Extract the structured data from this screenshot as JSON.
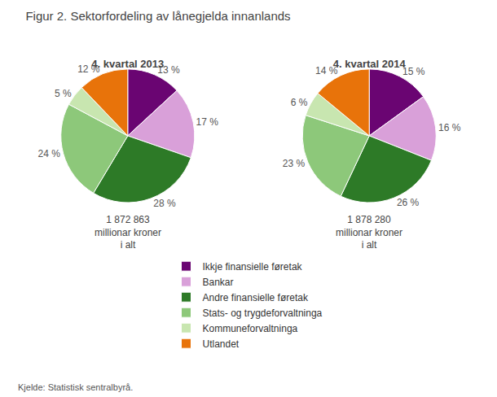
{
  "chart_data": {
    "type": "pie",
    "title": "Figur 2. Sektorfordeling av lånegjelda innanlands",
    "categories": [
      "Ikkje finansielle føretak",
      "Bankar",
      "Andre finansielle føretak",
      "Stats- og trygdeforvaltninga",
      "Kommuneforvaltninga",
      "Utlandet"
    ],
    "colors": [
      "#6a0572",
      "#d9a0d9",
      "#2d7a27",
      "#8dc87a",
      "#c8e6b0",
      "#e8730a"
    ],
    "data_labels": true,
    "legend": "bottom",
    "series": [
      {
        "name": "4. kvartal 2013",
        "subtitle": "1 872 863\nmillionar kroner\ni alt",
        "values": [
          13,
          17,
          28,
          24,
          5,
          12
        ],
        "value_labels": [
          "13 %",
          "17 %",
          "28 %",
          "24 %",
          "5 %",
          "12 %"
        ]
      },
      {
        "name": "4. kvartal 2014",
        "subtitle": "1 878 280\nmillionar kroner\ni alt",
        "values": [
          15,
          16,
          26,
          23,
          6,
          14
        ],
        "value_labels": [
          "15 %",
          "16 %",
          "26 %",
          "23 %",
          "6 %",
          "14 %"
        ]
      }
    ],
    "annotations": [
      "Kjelde: Statistisk sentralbyrå."
    ]
  }
}
